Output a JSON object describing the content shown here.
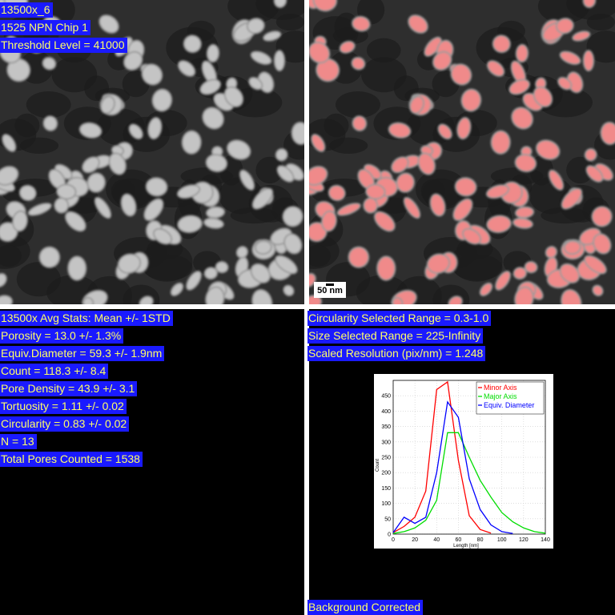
{
  "left_panel": {
    "labels": [
      "13500x_6",
      "1525 NPN Chip 1",
      "Threshold Level = 41000"
    ]
  },
  "right_panel": {
    "scale_bar": "50 nm"
  },
  "stats": {
    "lines": [
      "13500x Avg Stats: Mean +/- 1STD",
      "Porosity = 13.0 +/- 1.3%",
      "Equiv.Diameter = 59.3 +/- 1.9nm",
      "Count = 118.3 +/- 8.4",
      "Pore Density = 43.9 +/- 3.1",
      "Tortuosity = 1.11 +/- 0.02",
      "Circularity = 0.83 +/- 0.02",
      "N = 13",
      "Total Pores Counted = 1538"
    ]
  },
  "settings": {
    "lines": [
      "Circularity Selected Range = 0.3-1.0",
      "Size Selected Range = 225-Infinity",
      "Scaled Resolution (pix/nm) = 1.248"
    ],
    "footer": "Background Corrected"
  },
  "chart_data": {
    "type": "line",
    "xlabel": "Length [nm]",
    "ylabel": "Count",
    "xlim": [
      0,
      140
    ],
    "ylim": [
      0,
      500
    ],
    "xticks": [
      0,
      20,
      40,
      60,
      80,
      100,
      120,
      140
    ],
    "yticks": [
      0,
      50,
      100,
      150,
      200,
      250,
      300,
      350,
      400,
      450
    ],
    "legend_position": "top-right",
    "series": [
      {
        "name": "Minor Axis",
        "color": "#ff0000",
        "x": [
          0,
          10,
          20,
          30,
          40,
          50,
          60,
          70,
          80,
          90
        ],
        "y": [
          5,
          25,
          55,
          140,
          470,
          495,
          240,
          60,
          15,
          3
        ]
      },
      {
        "name": "Major Axis",
        "color": "#00dd00",
        "x": [
          0,
          10,
          20,
          30,
          40,
          50,
          60,
          70,
          80,
          90,
          100,
          110,
          120,
          130,
          140
        ],
        "y": [
          2,
          8,
          20,
          45,
          110,
          330,
          330,
          250,
          175,
          120,
          70,
          40,
          20,
          8,
          3
        ]
      },
      {
        "name": "Equiv. Diameter",
        "color": "#0000ff",
        "x": [
          0,
          10,
          20,
          30,
          40,
          50,
          60,
          70,
          80,
          90,
          100,
          110
        ],
        "y": [
          5,
          55,
          35,
          55,
          200,
          430,
          380,
          180,
          80,
          30,
          8,
          2
        ]
      }
    ]
  }
}
